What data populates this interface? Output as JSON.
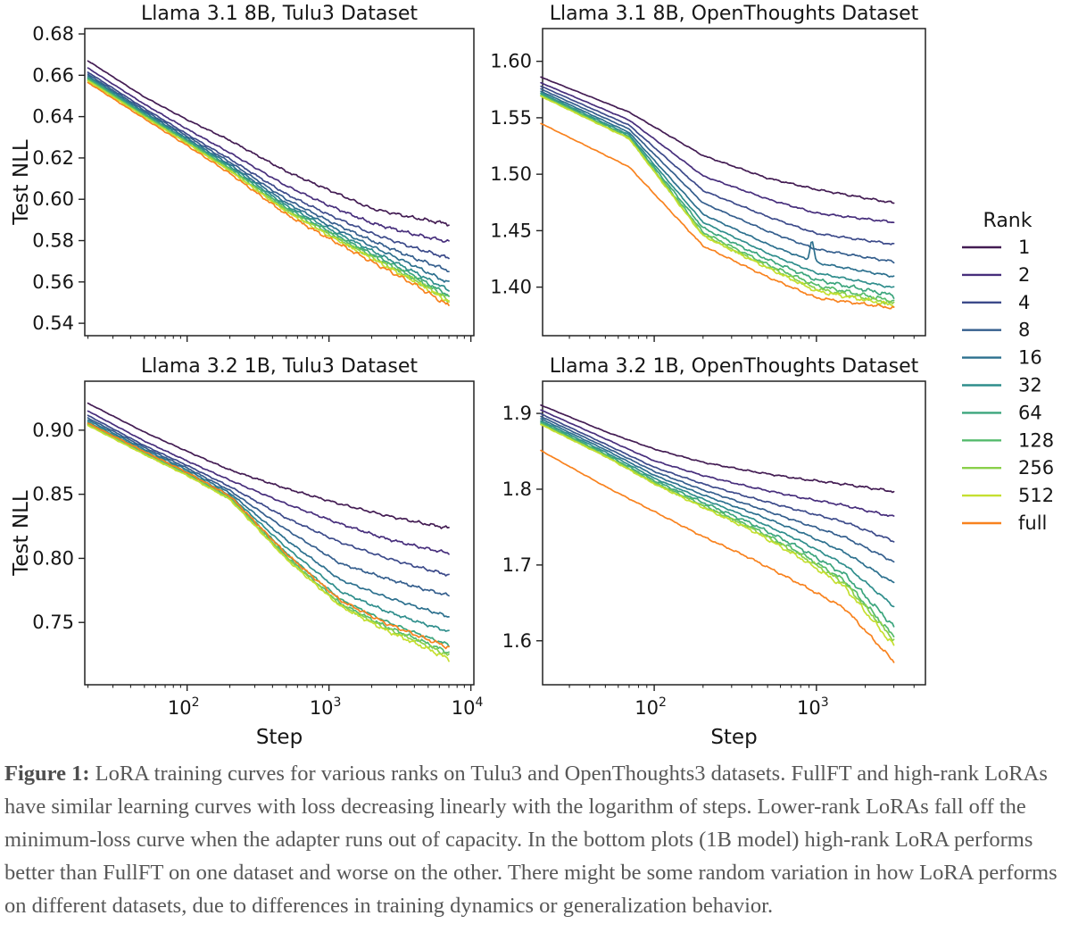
{
  "figure": {
    "caption_label": "Figure 1:",
    "caption_text": " LoRA training curves for various ranks on Tulu3 and OpenThoughts3 datasets. FullFT and high-rank LoRAs have similar learning curves with loss decreasing linearly with the logarithm of steps. Lower-rank LoRAs fall off the minimum-loss curve when the adapter runs out of capacity. In the bottom plots (1B model) high-rank LoRA performs better than FullFT on one dataset and worse on the other. There might be some random variation in how LoRA performs on different datasets, due to differences in training dynamics or generalization behavior."
  },
  "legend": {
    "title": "Rank",
    "entries": [
      {
        "label": "1",
        "color": "#431c53"
      },
      {
        "label": "2",
        "color": "#472e7c"
      },
      {
        "label": "4",
        "color": "#3c4a8a"
      },
      {
        "label": "8",
        "color": "#345e8d"
      },
      {
        "label": "16",
        "color": "#2c708e"
      },
      {
        "label": "32",
        "color": "#2f8e8c"
      },
      {
        "label": "64",
        "color": "#3ba57c"
      },
      {
        "label": "128",
        "color": "#55bb6c"
      },
      {
        "label": "256",
        "color": "#8ad04a"
      },
      {
        "label": "512",
        "color": "#c5df30"
      },
      {
        "label": "full",
        "color": "#f8821e"
      }
    ]
  },
  "chart_data": [
    {
      "id": "llama-3-1-8b-tulu3",
      "type": "line",
      "title": "Llama 3.1 8B, Tulu3 Dataset",
      "xlabel": "",
      "ylabel": "Test NLL",
      "xscale": "log",
      "xlim": [
        19,
        10500
      ],
      "ylim": [
        0.534,
        0.6826
      ],
      "yticks": [
        0.54,
        0.56,
        0.58,
        0.6,
        0.62,
        0.64,
        0.66,
        0.68
      ],
      "ytick_labels": [
        "0.54",
        "0.56",
        "0.58",
        "0.60",
        "0.62",
        "0.64",
        "0.66",
        "0.68"
      ],
      "xtick_exponents": [
        2,
        3,
        4
      ],
      "show_xtick_labels": false,
      "grid": false,
      "noise": 0.0009,
      "steps": [
        20,
        50,
        100,
        200,
        500,
        1000,
        2000,
        4000,
        7000
      ],
      "series": [
        {
          "rank": "1",
          "values": [
            0.667,
            0.6495,
            0.6385,
            0.6285,
            0.6135,
            0.6045,
            0.5955,
            0.591,
            0.588
          ]
        },
        {
          "rank": "2",
          "values": [
            0.6635,
            0.646,
            0.634,
            0.6225,
            0.6065,
            0.597,
            0.5885,
            0.583,
            0.5795
          ]
        },
        {
          "rank": "4",
          "values": [
            0.6615,
            0.644,
            0.6315,
            0.6195,
            0.6025,
            0.5925,
            0.5835,
            0.5765,
            0.5715
          ]
        },
        {
          "rank": "8",
          "values": [
            0.6605,
            0.643,
            0.6305,
            0.618,
            0.6,
            0.5895,
            0.58,
            0.5715,
            0.5655
          ]
        },
        {
          "rank": "16",
          "values": [
            0.6597,
            0.6422,
            0.6295,
            0.6168,
            0.5983,
            0.5873,
            0.5773,
            0.5678,
            0.5595
          ]
        },
        {
          "rank": "32",
          "values": [
            0.659,
            0.6415,
            0.6288,
            0.616,
            0.597,
            0.5857,
            0.5752,
            0.5648,
            0.556
          ]
        },
        {
          "rank": "64",
          "values": [
            0.6585,
            0.641,
            0.6282,
            0.6152,
            0.596,
            0.5845,
            0.5737,
            0.563,
            0.5535
          ]
        },
        {
          "rank": "128",
          "values": [
            0.658,
            0.6405,
            0.6277,
            0.6146,
            0.5952,
            0.5837,
            0.5727,
            0.5618,
            0.5522
          ]
        },
        {
          "rank": "256",
          "values": [
            0.6576,
            0.6401,
            0.6273,
            0.6141,
            0.5946,
            0.583,
            0.572,
            0.561,
            0.5512
          ]
        },
        {
          "rank": "512",
          "values": [
            0.6572,
            0.6398,
            0.627,
            0.6137,
            0.594,
            0.5824,
            0.5713,
            0.5602,
            0.5504
          ]
        },
        {
          "rank": "full",
          "values": [
            0.6565,
            0.639,
            0.626,
            0.6125,
            0.5927,
            0.581,
            0.5698,
            0.5588,
            0.5484
          ]
        }
      ]
    },
    {
      "id": "llama-3-1-8b-openthoughts",
      "type": "line",
      "title": "Llama 3.1 8B, OpenThoughts Dataset",
      "xlabel": "",
      "ylabel": "",
      "xscale": "log",
      "xlim": [
        20.5,
        4700
      ],
      "ylim": [
        1.357,
        1.629
      ],
      "yticks": [
        1.4,
        1.45,
        1.5,
        1.55,
        1.6
      ],
      "ytick_labels": [
        "1.40",
        "1.45",
        "1.50",
        "1.55",
        "1.60"
      ],
      "xtick_exponents": [
        2,
        3
      ],
      "show_xtick_labels": false,
      "grid": false,
      "noise": 0.0011,
      "steps": [
        20,
        70,
        200,
        500,
        1000,
        3000
      ],
      "series": [
        {
          "rank": "1",
          "values": [
            1.586,
            1.555,
            1.5165,
            1.4965,
            1.4865,
            1.4745
          ]
        },
        {
          "rank": "2",
          "values": [
            1.581,
            1.548,
            1.4985,
            1.478,
            1.4655,
            1.4575
          ]
        },
        {
          "rank": "4",
          "values": [
            1.578,
            1.5435,
            1.4855,
            1.4625,
            1.4475,
            1.438
          ]
        },
        {
          "rank": "8",
          "values": [
            1.5755,
            1.54,
            1.4745,
            1.4495,
            1.4335,
            1.4225
          ]
        },
        {
          "rank": "16",
          "values": [
            1.5735,
            1.537,
            1.4645,
            1.438,
            1.4215,
            1.4095
          ],
          "spike": [
            940,
            0.018
          ]
        },
        {
          "rank": "32",
          "values": [
            1.572,
            1.535,
            1.4575,
            1.43,
            1.4125,
            1.3995
          ]
        },
        {
          "rank": "64",
          "values": [
            1.571,
            1.5335,
            1.4525,
            1.4245,
            1.4065,
            1.3925
          ]
        },
        {
          "rank": "128",
          "values": [
            1.57,
            1.5325,
            1.4485,
            1.42,
            1.4015,
            1.3875
          ]
        },
        {
          "rank": "256",
          "values": [
            1.5695,
            1.532,
            1.4465,
            1.418,
            1.3985,
            1.3855
          ]
        },
        {
          "rank": "512",
          "values": [
            1.569,
            1.5315,
            1.4455,
            1.417,
            1.3965,
            1.384
          ]
        },
        {
          "rank": "full",
          "values": [
            1.545,
            1.5065,
            1.4365,
            1.409,
            1.3905,
            1.3815
          ]
        }
      ]
    },
    {
      "id": "llama-3-2-1b-tulu3",
      "type": "line",
      "title": "Llama 3.2 1B, Tulu3 Dataset",
      "xlabel": "Step",
      "ylabel": "Test NLL",
      "xscale": "log",
      "xlim": [
        19,
        10500
      ],
      "ylim": [
        0.7014,
        0.9382
      ],
      "yticks": [
        0.75,
        0.8,
        0.85,
        0.9
      ],
      "ytick_labels": [
        "0.75",
        "0.80",
        "0.85",
        "0.90"
      ],
      "xtick_exponents": [
        2,
        3,
        4
      ],
      "show_xtick_labels": true,
      "grid": false,
      "noise": 0.0013,
      "steps": [
        20,
        50,
        100,
        200,
        500,
        1200,
        2500,
        4500,
        7000
      ],
      "series": [
        {
          "rank": "1",
          "values": [
            0.921,
            0.8985,
            0.8835,
            0.869,
            0.8545,
            0.8424,
            0.8335,
            0.8275,
            0.8236
          ]
        },
        {
          "rank": "2",
          "values": [
            0.915,
            0.8915,
            0.876,
            0.861,
            0.8425,
            0.827,
            0.8155,
            0.8085,
            0.804
          ]
        },
        {
          "rank": "4",
          "values": [
            0.9115,
            0.888,
            0.8725,
            0.856,
            0.8315,
            0.8125,
            0.8005,
            0.7925,
            0.787
          ]
        },
        {
          "rank": "8",
          "values": [
            0.9095,
            0.8865,
            0.8705,
            0.853,
            0.8225,
            0.796,
            0.7845,
            0.7765,
            0.771
          ]
        },
        {
          "rank": "16",
          "values": [
            0.908,
            0.885,
            0.869,
            0.851,
            0.8145,
            0.7833,
            0.77,
            0.761,
            0.7545
          ]
        },
        {
          "rank": "32",
          "values": [
            0.9065,
            0.8838,
            0.8675,
            0.8493,
            0.8085,
            0.7743,
            0.759,
            0.7495,
            0.743
          ]
        },
        {
          "rank": "64",
          "values": [
            0.9052,
            0.8827,
            0.8663,
            0.848,
            0.804,
            0.768,
            0.751,
            0.74,
            0.7325
          ]
        },
        {
          "rank": "128",
          "values": [
            0.9047,
            0.882,
            0.8656,
            0.847,
            0.8015,
            0.7648,
            0.747,
            0.7355,
            0.7265
          ]
        },
        {
          "rank": "256",
          "values": [
            0.9042,
            0.8815,
            0.8651,
            0.8465,
            0.8005,
            0.7638,
            0.7455,
            0.734,
            0.724
          ]
        },
        {
          "rank": "512",
          "values": [
            0.9037,
            0.881,
            0.8646,
            0.846,
            0.7995,
            0.7628,
            0.744,
            0.7315,
            0.7215
          ]
        },
        {
          "rank": "full",
          "values": [
            0.9055,
            0.8833,
            0.867,
            0.8487,
            0.8035,
            0.7673,
            0.7495,
            0.7385,
            0.7305
          ]
        }
      ]
    },
    {
      "id": "llama-3-2-1b-openthoughts",
      "type": "line",
      "title": "Llama 3.2 1B, OpenThoughts Dataset",
      "xlabel": "Step",
      "ylabel": "",
      "xscale": "log",
      "xlim": [
        20.5,
        4700
      ],
      "ylim": [
        1.542,
        1.9425
      ],
      "yticks": [
        1.6,
        1.7,
        1.8,
        1.9
      ],
      "ytick_labels": [
        "1.6",
        "1.7",
        "1.8",
        "1.9"
      ],
      "xtick_exponents": [
        2,
        3
      ],
      "show_xtick_labels": true,
      "grid": false,
      "noise": 0.0018,
      "steps": [
        20,
        50,
        100,
        200,
        400,
        800,
        1500,
        3000
      ],
      "series": [
        {
          "rank": "1",
          "values": [
            1.911,
            1.876,
            1.853,
            1.8355,
            1.8235,
            1.8135,
            1.8065,
            1.797
          ]
        },
        {
          "rank": "2",
          "values": [
            1.9045,
            1.8665,
            1.8375,
            1.818,
            1.8025,
            1.789,
            1.7785,
            1.7635
          ]
        },
        {
          "rank": "4",
          "values": [
            1.8995,
            1.8595,
            1.829,
            1.807,
            1.7885,
            1.7715,
            1.7565,
            1.7315
          ]
        },
        {
          "rank": "8",
          "values": [
            1.896,
            1.8555,
            1.8235,
            1.799,
            1.778,
            1.756,
            1.7365,
            1.7045
          ]
        },
        {
          "rank": "16",
          "values": [
            1.893,
            1.852,
            1.8185,
            1.7925,
            1.769,
            1.7435,
            1.7165,
            1.676
          ]
        },
        {
          "rank": "32",
          "values": [
            1.8905,
            1.849,
            1.8145,
            1.787,
            1.761,
            1.7315,
            1.7,
            1.6455
          ]
        },
        {
          "rank": "64",
          "values": [
            1.8885,
            1.8465,
            1.8115,
            1.7825,
            1.7545,
            1.722,
            1.6875,
            1.619
          ]
        },
        {
          "rank": "128",
          "values": [
            1.887,
            1.845,
            1.8092,
            1.779,
            1.75,
            1.7155,
            1.679,
            1.6055
          ]
        },
        {
          "rank": "256",
          "values": [
            1.886,
            1.844,
            1.8082,
            1.7775,
            1.748,
            1.7125,
            1.6755,
            1.6015
          ]
        },
        {
          "rank": "512",
          "values": [
            1.8852,
            1.8432,
            1.8072,
            1.776,
            1.7455,
            1.709,
            1.6705,
            1.5935
          ]
        },
        {
          "rank": "full",
          "values": [
            1.851,
            1.8035,
            1.7705,
            1.7375,
            1.708,
            1.6745,
            1.6425,
            1.5725
          ]
        }
      ]
    }
  ]
}
